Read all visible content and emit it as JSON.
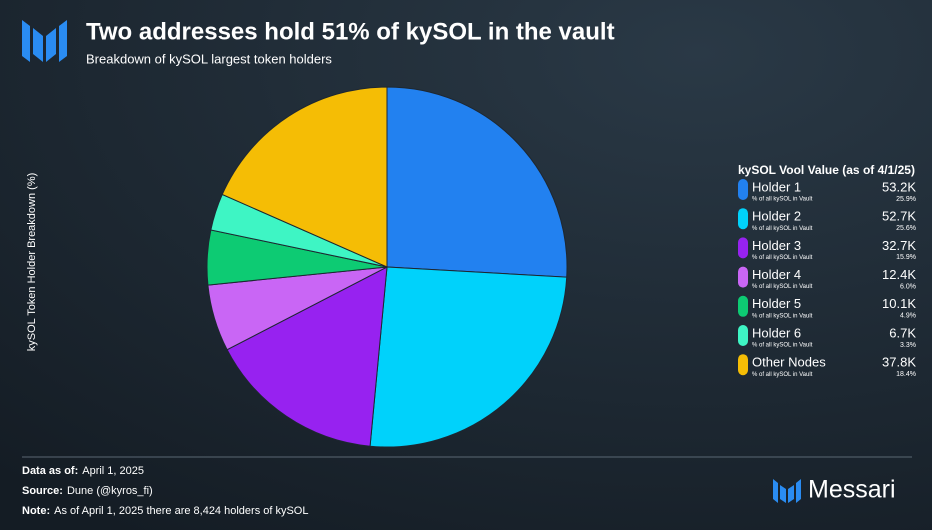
{
  "chart_data": {
    "type": "pie",
    "title": "Two addresses hold 51% of kySOL in the vault",
    "subtitle": "Breakdown of kySOL largest token holders",
    "ylabel": "kySOL Token Holder Breakdown (%)",
    "legend_title": "kySOL Vool Value (as of 4/1/25)",
    "legend_sublabel": "% of all kySOL in Vault",
    "categories": [
      "Holder 1",
      "Holder 2",
      "Holder 3",
      "Holder 4",
      "Holder 5",
      "Holder 6",
      "Other Nodes"
    ],
    "values": [
      25.9,
      25.6,
      15.9,
      6.0,
      4.9,
      3.3,
      18.4
    ],
    "value_labels": [
      "25.9%",
      "25.6%",
      "15.9%",
      "6.0%",
      "4.9%",
      "3.3%",
      "18.4%"
    ],
    "amount_labels": [
      "53.2K",
      "52.7K",
      "32.7K",
      "12.4K",
      "10.1K",
      "6.7K",
      "37.8K"
    ],
    "colors": [
      "#2281f0",
      "#00d2fb",
      "#9722f0",
      "#c966f5",
      "#0dcb73",
      "#3ef5c4",
      "#f5bd05"
    ],
    "legend": "right"
  },
  "footer": [
    {
      "label": "Data as of:",
      "text": "April 1, 2025"
    },
    {
      "label": "Source:",
      "text": "Dune (@kyros_fi)"
    },
    {
      "label": "Note:",
      "text": "As of April 1, 2025 there are 8,424 holders of kySOL"
    }
  ],
  "brand": "Messari"
}
